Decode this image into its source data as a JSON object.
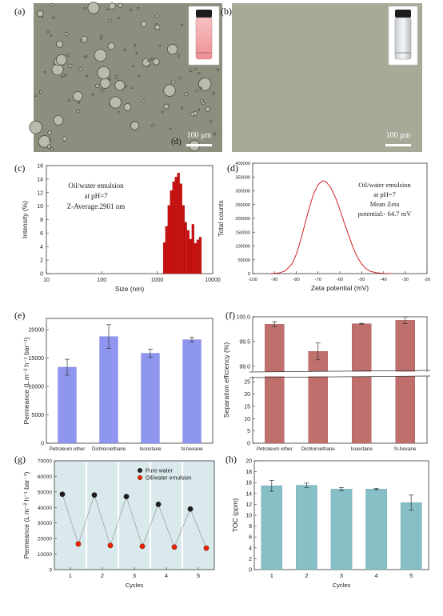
{
  "panels": {
    "a": {
      "letter": "(a)",
      "scale_label": "100 μm",
      "inner_letter": "(d)"
    },
    "b": {
      "letter": "(b)",
      "scale_label": "100 μm"
    },
    "c": {
      "letter": "(c)"
    },
    "d": {
      "letter": "(d)"
    },
    "e": {
      "letter": "(e)"
    },
    "f": {
      "letter": "(f)"
    },
    "g": {
      "letter": "(g)"
    },
    "h": {
      "letter": "(h)"
    }
  },
  "colors": {
    "red_bar": "#cc1111",
    "red_line": "#cc2222",
    "blue_bar": "#8f96f0",
    "rose_bar": "#c0706c",
    "teal_bar": "#86c0c6",
    "g_background": "#d9e9ec",
    "micrograph_bg": "#8a8f7c"
  },
  "chart_data": [
    {
      "id": "c",
      "type": "bar",
      "xlabel": "Size (nm)",
      "ylabel": "Intensity (%)",
      "xscale": "log",
      "xlim": [
        10,
        10000
      ],
      "ylim": [
        0,
        16
      ],
      "xticks": [
        "10",
        "100",
        "1000",
        "10000"
      ],
      "yticks": [
        "0",
        "2",
        "4",
        "6",
        "8",
        "10",
        "12",
        "14",
        "16"
      ],
      "annotation": [
        "Oil/water emulsion",
        "at pH=7",
        "Z-Average:2901 nm"
      ],
      "x": [
        1280,
        1400,
        1550,
        1700,
        1880,
        2080,
        2300,
        2550,
        2820,
        3100,
        3450,
        3800,
        4200,
        4650,
        5150,
        5700
      ],
      "values": [
        4.6,
        7.0,
        10.1,
        12.3,
        13.6,
        14.3,
        14.9,
        13.3,
        10.1,
        7.6,
        6.4,
        5.1,
        7.3,
        4.5,
        5.0,
        5.4
      ]
    },
    {
      "id": "d",
      "type": "line",
      "xlabel": "Zeta potential (mV)",
      "ylabel": "Total counts",
      "xlim": [
        -100,
        -20
      ],
      "ylim": [
        0,
        400000
      ],
      "xticks": [
        "-100",
        "-90",
        "-80",
        "-70",
        "-60",
        "-50",
        "-40",
        "-30",
        "-20"
      ],
      "yticks": [
        "0",
        "50000",
        "100000",
        "150000",
        "200000",
        "250000",
        "300000",
        "350000",
        "400000"
      ],
      "annotation": [
        "Oil/water emulsion",
        "at pH=7",
        "Mean Zeta",
        "potential:- 64.7 mV"
      ],
      "x": [
        -92,
        -88,
        -85,
        -82,
        -80,
        -78,
        -76,
        -74,
        -72,
        -70,
        -68,
        -67,
        -66,
        -64,
        -62,
        -60,
        -58,
        -56,
        -54,
        -52,
        -50,
        -48,
        -46,
        -43,
        -40,
        -36
      ],
      "y": [
        0,
        2000,
        10000,
        35000,
        70000,
        120000,
        180000,
        240000,
        290000,
        322000,
        336000,
        335000,
        330000,
        310000,
        275000,
        232000,
        185000,
        140000,
        95000,
        60000,
        35000,
        18000,
        8000,
        3000,
        1000,
        0
      ]
    },
    {
      "id": "e",
      "type": "bar",
      "ylabel": "Permeance (L m⁻² h⁻¹ bar⁻¹)",
      "categories": [
        "Petroleum ether",
        "Dichloroethane",
        "Isooctane",
        "N-hexane"
      ],
      "values": [
        13400,
        18800,
        15850,
        18250
      ],
      "errors": [
        1400,
        2100,
        700,
        400
      ],
      "ylim": [
        0,
        22000
      ],
      "yticks": [
        "0",
        "5000",
        "10000",
        "15000",
        "20000"
      ]
    },
    {
      "id": "f",
      "type": "bar",
      "ylabel": "Separation efficiency (%)",
      "categories": [
        "Petroleum ether",
        "Dichloroethane",
        "Isooctane",
        "N-hexane"
      ],
      "values": [
        99.85,
        99.3,
        99.86,
        99.93
      ],
      "errors": [
        0.05,
        0.17,
        0.01,
        0.07
      ],
      "upper_ylim": [
        98.9,
        100.0
      ],
      "upper_yticks": [
        "99.0",
        "99.5",
        "100.0"
      ],
      "lower_ylim": [
        0,
        27
      ],
      "lower_yticks": [
        "0",
        "5",
        "10",
        "15",
        "20",
        "25"
      ]
    },
    {
      "id": "g",
      "type": "scatter",
      "xlabel": "Cycles",
      "ylabel": "Permeance (L m⁻² h⁻¹ bar⁻¹)",
      "xlim": [
        0.5,
        5.5
      ],
      "ylim": [
        0,
        70000
      ],
      "xticks": [
        "1",
        "2",
        "3",
        "4",
        "5"
      ],
      "yticks": [
        "0",
        "10000",
        "20000",
        "30000",
        "40000",
        "50000",
        "60000",
        "70000"
      ],
      "series": [
        {
          "name": "Pure water",
          "color": "#1e1e1e",
          "x": [
            0.75,
            1.75,
            2.75,
            3.75,
            4.75
          ],
          "y": [
            48500,
            48000,
            47000,
            42000,
            39000
          ]
        },
        {
          "name": "Oil/water emulsion",
          "color": "#ee2200",
          "x": [
            1.25,
            2.25,
            3.25,
            4.25,
            5.25
          ],
          "y": [
            16500,
            15500,
            15000,
            14500,
            13800
          ]
        }
      ],
      "connect_order": [
        [
          0,
          0
        ],
        [
          1,
          0
        ],
        [
          0,
          1
        ],
        [
          1,
          1
        ],
        [
          0,
          2
        ],
        [
          1,
          2
        ],
        [
          0,
          3
        ],
        [
          1,
          3
        ],
        [
          0,
          4
        ],
        [
          1,
          4
        ]
      ]
    },
    {
      "id": "h",
      "type": "bar",
      "xlabel": "Cycles",
      "ylabel": "TOC (ppm)",
      "categories": [
        "1",
        "2",
        "3",
        "4",
        "5"
      ],
      "values": [
        15.4,
        15.5,
        14.8,
        14.8,
        12.3
      ],
      "errors": [
        1.0,
        0.4,
        0.3,
        0.15,
        1.4
      ],
      "ylim": [
        0,
        20
      ],
      "yticks": [
        "0",
        "2",
        "4",
        "6",
        "8",
        "10",
        "12",
        "14",
        "16",
        "18",
        "20"
      ]
    }
  ]
}
